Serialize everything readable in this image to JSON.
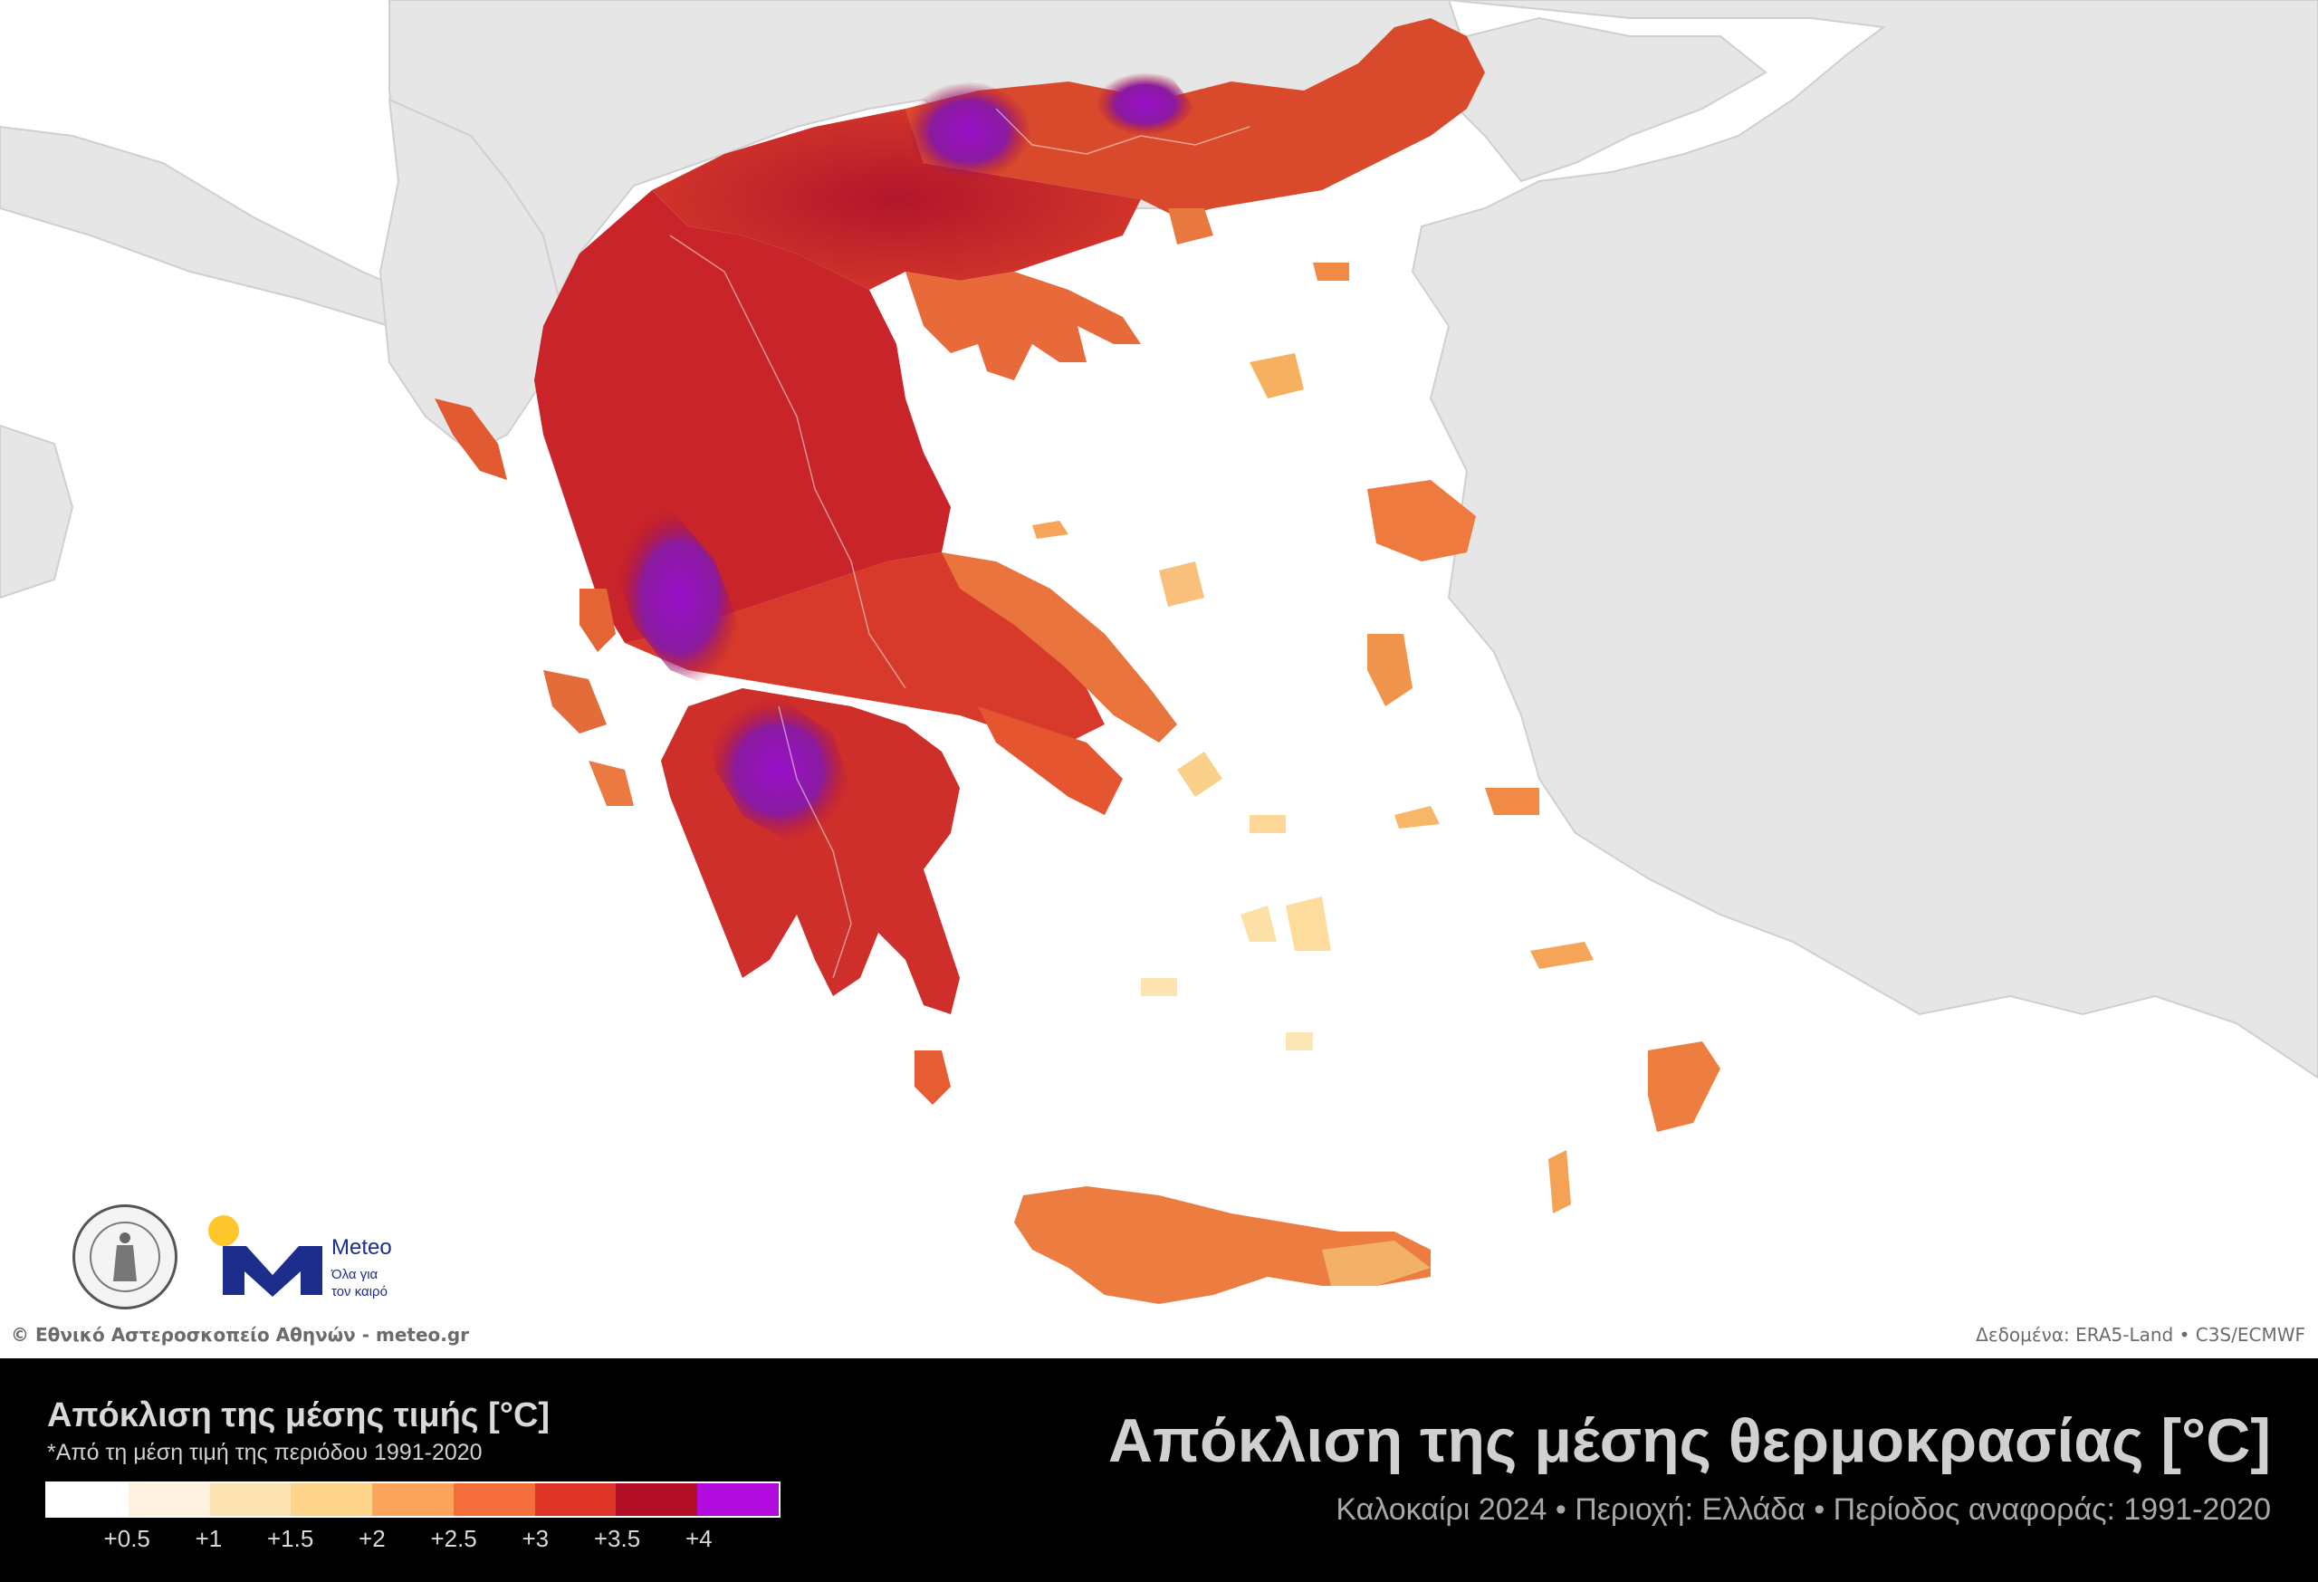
{
  "title": "Απόκλιση της μέσης θερμοκρασίας [°C]",
  "subtitle": "Καλοκαίρι 2024 • Περιοχή: Ελλάδα • Περίοδος αναφοράς: 1991-2020",
  "legend": {
    "title": "Απόκλιση της μέσης τιμής [°C]",
    "subtitle": "*Από τη μέση τιμή της περιόδου 1991-2020",
    "colors": [
      "#ffffff",
      "#fff3e0",
      "#fde3b1",
      "#fed38a",
      "#fca45a",
      "#f46e3b",
      "#dc3527",
      "#b20e26",
      "#b10bde"
    ],
    "ticks": [
      "+0.5",
      "+1",
      "+1.5",
      "+2",
      "+2.5",
      "+3",
      "+3.5",
      "+4"
    ]
  },
  "credits": {
    "left": "© Εθνικό Αστεροσκοπείο Αθηνών - meteo.gr",
    "right": "Δεδομένα: ERA5-Land • C3S/ECMWF"
  },
  "logos": {
    "seal": "seal-icon",
    "meteo_name": "Meteo",
    "meteo_tagline_1": "Όλα για",
    "meteo_tagline_2": "τον καιρό"
  },
  "map": {
    "region": "Ελλάδα",
    "land_color": "#e6e6e6",
    "sea_color": "#ffffff"
  }
}
